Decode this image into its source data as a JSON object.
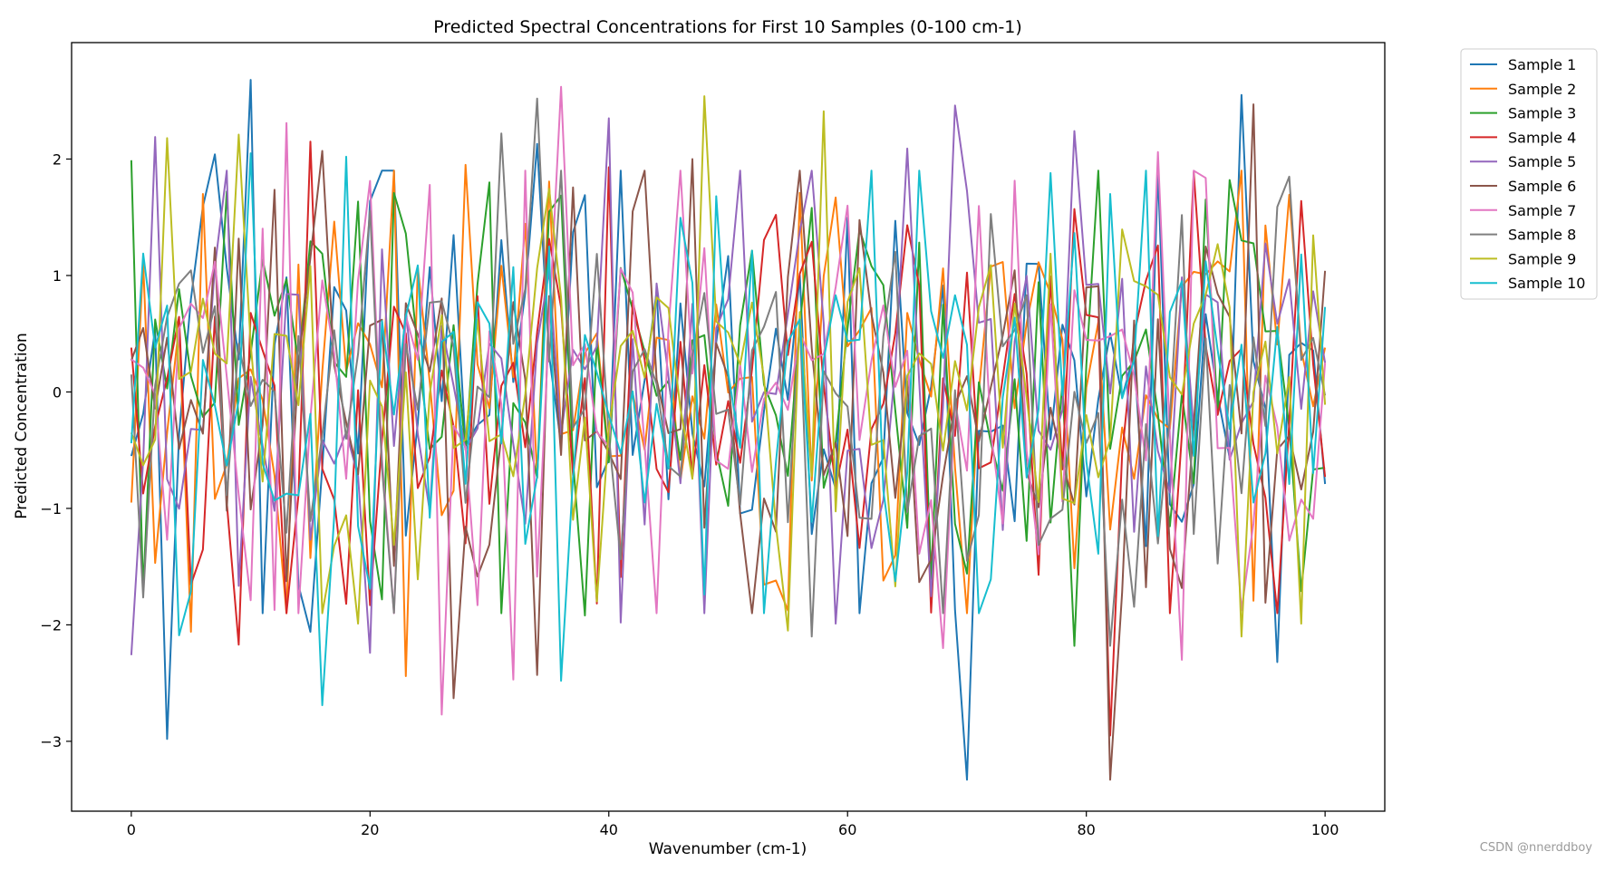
{
  "chart_data": {
    "type": "line",
    "title": "Predicted Spectral Concentrations for First 10 Samples (0-100 cm-1)",
    "xlabel": "Wavenumber (cm-1)",
    "ylabel": "Predicted Concentration",
    "xlim": [
      -5,
      105
    ],
    "ylim": [
      -3.6,
      3.0
    ],
    "x_ticks": [
      0,
      20,
      40,
      60,
      80,
      100
    ],
    "x_tick_labels": [
      "0",
      "20",
      "40",
      "60",
      "80",
      "100"
    ],
    "y_ticks": [
      -3,
      -2,
      -1,
      0,
      1,
      2
    ],
    "y_tick_labels": [
      "−3",
      "−2",
      "−1",
      "0",
      "1",
      "2"
    ],
    "grid": false,
    "legend_position": "outside-top-right",
    "x_start": 0,
    "x_step": 1,
    "n_points": 101,
    "series": [
      {
        "name": "Sample 1",
        "color": "#1f77b4",
        "amplitude": 1.0,
        "seed": 101,
        "key_points": [
          [
            0,
            -0.55
          ],
          [
            3,
            -2.98
          ],
          [
            7,
            2.04
          ],
          [
            10,
            2.68
          ],
          [
            15,
            -2.06
          ],
          [
            34,
            2.13
          ],
          [
            38,
            1.69
          ],
          [
            70,
            -3.33
          ],
          [
            93,
            2.55
          ],
          [
            96,
            -2.32
          ],
          [
            100,
            -0.79
          ]
        ]
      },
      {
        "name": "Sample 2",
        "color": "#ff7f0e",
        "amplitude": 0.9,
        "seed": 202,
        "key_points": [
          [
            0,
            -0.95
          ],
          [
            5,
            -2.06
          ],
          [
            6,
            1.7
          ],
          [
            23,
            -2.44
          ],
          [
            28,
            1.95
          ],
          [
            63,
            -1.62
          ],
          [
            95,
            1.43
          ],
          [
            100,
            0.38
          ]
        ]
      },
      {
        "name": "Sample 3",
        "color": "#2ca02c",
        "amplitude": 0.95,
        "seed": 303,
        "key_points": [
          [
            0,
            1.99
          ],
          [
            1,
            -1.71
          ],
          [
            23,
            1.36
          ],
          [
            30,
            1.8
          ],
          [
            38,
            -1.92
          ],
          [
            57,
            1.58
          ],
          [
            70,
            -1.56
          ],
          [
            79,
            -2.18
          ],
          [
            92,
            1.82
          ],
          [
            98,
            -1.71
          ],
          [
            100,
            -0.65
          ]
        ]
      },
      {
        "name": "Sample 4",
        "color": "#d62728",
        "amplitude": 0.95,
        "seed": 404,
        "key_points": [
          [
            0,
            0.38
          ],
          [
            9,
            -2.17
          ],
          [
            15,
            2.15
          ],
          [
            18,
            -1.82
          ],
          [
            40,
            1.93
          ],
          [
            76,
            -1.57
          ],
          [
            82,
            -2.95
          ],
          [
            98,
            1.64
          ],
          [
            100,
            -0.73
          ]
        ]
      },
      {
        "name": "Sample 5",
        "color": "#9467bd",
        "amplitude": 0.9,
        "seed": 505,
        "key_points": [
          [
            0,
            -2.26
          ],
          [
            2,
            2.19
          ],
          [
            20,
            -2.24
          ],
          [
            40,
            2.35
          ],
          [
            41,
            -1.98
          ],
          [
            59,
            -1.99
          ],
          [
            65,
            2.09
          ],
          [
            69,
            2.46
          ],
          [
            79,
            2.24
          ],
          [
            100,
            0.25
          ]
        ]
      },
      {
        "name": "Sample 6",
        "color": "#8c564b",
        "amplitude": 0.9,
        "seed": 606,
        "key_points": [
          [
            0,
            0.27
          ],
          [
            16,
            2.07
          ],
          [
            27,
            -2.63
          ],
          [
            34,
            -2.43
          ],
          [
            47,
            2.0
          ],
          [
            82,
            -3.33
          ],
          [
            94,
            2.47
          ],
          [
            100,
            1.04
          ]
        ]
      },
      {
        "name": "Sample 7",
        "color": "#e377c2",
        "amplitude": 0.9,
        "seed": 707,
        "key_points": [
          [
            0,
            0.28
          ],
          [
            13,
            2.31
          ],
          [
            26,
            -2.77
          ],
          [
            32,
            -2.47
          ],
          [
            36,
            2.62
          ],
          [
            60,
            1.6
          ],
          [
            68,
            -2.2
          ],
          [
            86,
            2.06
          ],
          [
            88,
            -2.3
          ],
          [
            100,
            0.25
          ]
        ]
      },
      {
        "name": "Sample 8",
        "color": "#7f7f7f",
        "amplitude": 0.85,
        "seed": 808,
        "key_points": [
          [
            0,
            0.15
          ],
          [
            31,
            2.22
          ],
          [
            34,
            2.52
          ],
          [
            57,
            -2.1
          ],
          [
            82,
            -2.18
          ],
          [
            88,
            1.52
          ],
          [
            100,
            -0.03
          ]
        ]
      },
      {
        "name": "Sample 9",
        "color": "#bcbd22",
        "amplitude": 0.9,
        "seed": 909,
        "key_points": [
          [
            0,
            -0.35
          ],
          [
            3,
            2.18
          ],
          [
            9,
            2.21
          ],
          [
            19,
            -1.99
          ],
          [
            48,
            2.54
          ],
          [
            55,
            -2.05
          ],
          [
            58,
            2.41
          ],
          [
            64,
            -1.67
          ],
          [
            93,
            -2.1
          ],
          [
            98,
            -1.99
          ],
          [
            100,
            -0.11
          ]
        ]
      },
      {
        "name": "Sample 10",
        "color": "#17becf",
        "amplitude": 0.9,
        "seed": 1010,
        "key_points": [
          [
            0,
            -0.44
          ],
          [
            4,
            -2.09
          ],
          [
            10,
            2.05
          ],
          [
            16,
            -2.69
          ],
          [
            18,
            2.02
          ],
          [
            36,
            -2.48
          ],
          [
            48,
            -1.74
          ],
          [
            77,
            1.88
          ],
          [
            82,
            1.7
          ],
          [
            100,
            0.73
          ]
        ]
      }
    ]
  },
  "watermark": "CSDN @nnerddboy"
}
